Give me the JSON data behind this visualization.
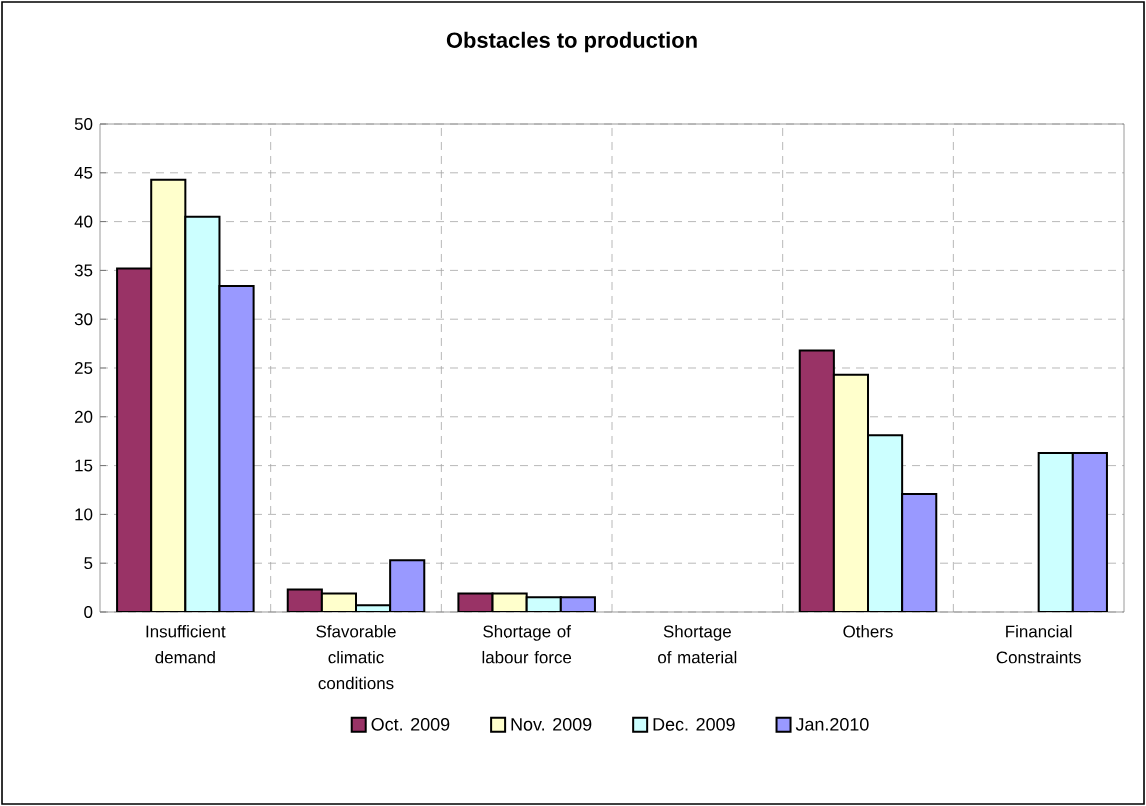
{
  "chart_data": {
    "type": "bar",
    "title": "Obstacles to production",
    "categories": [
      "Insufficient demand",
      "Sfavorable climatic conditions",
      "Shortage of labour force",
      "Shortage of material",
      "Others",
      "Financial Constraints"
    ],
    "series": [
      {
        "name": "Oct. 2009",
        "color": "#993366",
        "values": [
          35.2,
          2.3,
          1.9,
          null,
          26.8,
          null
        ]
      },
      {
        "name": "Nov. 2009",
        "color": "#ffffcc",
        "values": [
          44.3,
          1.9,
          1.9,
          null,
          24.3,
          null
        ]
      },
      {
        "name": "Dec. 2009",
        "color": "#ccffff",
        "values": [
          40.5,
          0.7,
          1.5,
          null,
          18.1,
          16.3
        ]
      },
      {
        "name": "Jan.2010",
        "color": "#9999ff",
        "values": [
          33.4,
          5.3,
          1.5,
          null,
          12.1,
          16.3
        ]
      }
    ],
    "ylim": [
      0,
      50
    ],
    "yticks": [
      0,
      5,
      10,
      15,
      20,
      25,
      30,
      35,
      40,
      45,
      50
    ],
    "grid": true,
    "legend": "bottom"
  }
}
